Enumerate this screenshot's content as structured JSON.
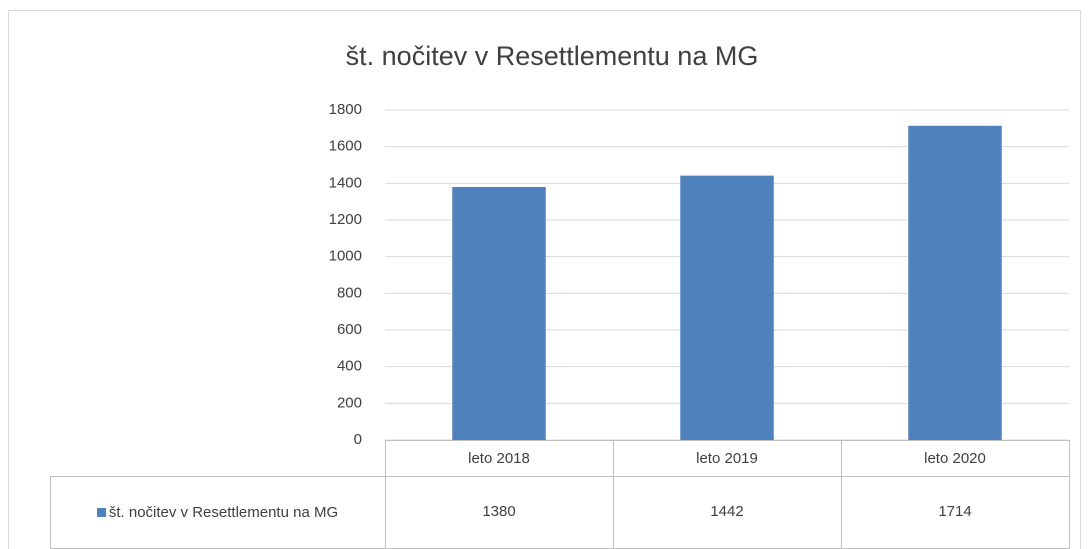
{
  "chart_data": {
    "type": "bar",
    "title": "št. nočitev v Resettlementu na MG",
    "categories": [
      "leto 2018",
      "leto 2019",
      "leto 2020"
    ],
    "series": [
      {
        "name": "št. nočitev v Resettlementu na MG",
        "color": "#4f81bd",
        "values": [
          1380,
          1442,
          1714
        ]
      }
    ],
    "ylim": [
      0,
      1800
    ],
    "yticks": [
      0,
      200,
      400,
      600,
      800,
      1000,
      1200,
      1400,
      1600,
      1800
    ],
    "grid": true,
    "data_table": true
  }
}
